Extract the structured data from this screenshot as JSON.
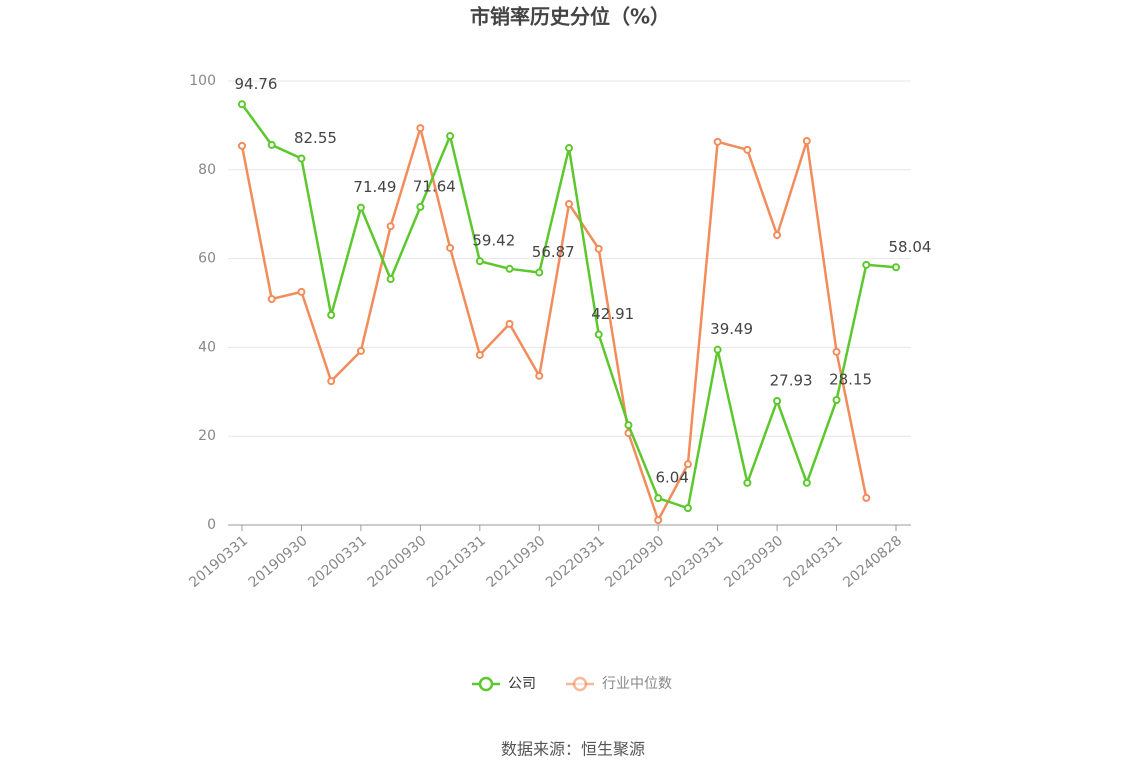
{
  "chart_data": {
    "type": "line",
    "title": "市销率历史分位（%）",
    "categories": [
      "20190331",
      null,
      "20190930",
      null,
      "20200331",
      null,
      "20200930",
      null,
      "20210331",
      null,
      "20210930",
      null,
      "20220331",
      null,
      "20220930",
      null,
      "20230331",
      null,
      "20230930",
      null,
      "20240331",
      null,
      "20240828"
    ],
    "series": [
      {
        "name": "公司",
        "color": "#5cc82d",
        "values": [
          94.76,
          85.6,
          82.55,
          47.3,
          71.49,
          55.4,
          71.64,
          87.6,
          59.42,
          57.7,
          56.87,
          84.9,
          42.91,
          22.5,
          6.04,
          3.8,
          39.49,
          9.5,
          27.93,
          9.5,
          28.15,
          58.6,
          58.04
        ]
      },
      {
        "name": "行业中位数",
        "color": "#f28c5b",
        "values": [
          85.4,
          50.9,
          52.5,
          32.4,
          39.2,
          67.3,
          89.4,
          62.4,
          38.3,
          45.3,
          33.6,
          72.3,
          62.2,
          20.7,
          1.1,
          13.7,
          86.3,
          84.5,
          65.3,
          86.5,
          39.0,
          6.1,
          null
        ]
      }
    ],
    "ylim": [
      0,
      100
    ],
    "yticks": [
      0,
      20,
      40,
      60,
      80,
      100
    ],
    "grid": true,
    "source": "数据来源：恒生聚源"
  }
}
